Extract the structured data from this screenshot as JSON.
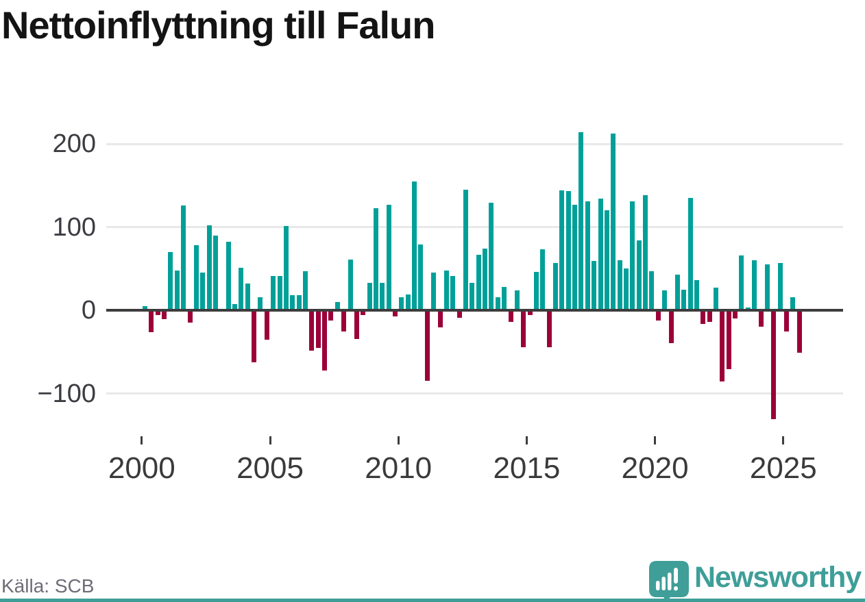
{
  "title": "Nettoinflyttning till Falun",
  "source": "Källa: SCB",
  "branding": {
    "logo_text": "Newsworthy",
    "logo_color": "#3f9e98",
    "logo_icon": "speech-bubble-bar-chart-exclamation"
  },
  "chart_data": {
    "type": "bar",
    "title": "Nettoinflyttning till Falun",
    "xlabel": "",
    "ylabel": "",
    "frequency": "quarterly",
    "grid": true,
    "legend": "none",
    "ylim": [
      -150,
      235
    ],
    "y_ticks": [
      200,
      100,
      0,
      -100
    ],
    "y_tick_labels": [
      "200",
      "100",
      "0",
      "−100"
    ],
    "x_tick_labels": [
      "2000",
      "2005",
      "2010",
      "2015",
      "2020",
      "2025"
    ],
    "colors": {
      "positive": "#00a099",
      "negative": "#9c0038"
    },
    "series_by_year": [
      {
        "year": 2000,
        "values": [
          5,
          -25,
          -4,
          -9
        ]
      },
      {
        "year": 2001,
        "values": [
          70,
          48,
          126,
          -13
        ]
      },
      {
        "year": 2002,
        "values": [
          78,
          45,
          102,
          90
        ]
      },
      {
        "year": 2003,
        "values": [
          0,
          82,
          7,
          51
        ]
      },
      {
        "year": 2004,
        "values": [
          32,
          -61,
          16,
          -34
        ]
      },
      {
        "year": 2005,
        "values": [
          41,
          41,
          101,
          18
        ]
      },
      {
        "year": 2006,
        "values": [
          18,
          47,
          -47,
          -44
        ]
      },
      {
        "year": 2007,
        "values": [
          -71,
          -11,
          10,
          -24
        ]
      },
      {
        "year": 2008,
        "values": [
          61,
          -33,
          -4,
          33
        ]
      },
      {
        "year": 2009,
        "values": [
          123,
          33,
          127,
          -6
        ]
      },
      {
        "year": 2010,
        "values": [
          16,
          19,
          155,
          79
        ]
      },
      {
        "year": 2011,
        "values": [
          -83,
          45,
          -19,
          48
        ]
      },
      {
        "year": 2012,
        "values": [
          41,
          -7,
          145,
          33
        ]
      },
      {
        "year": 2013,
        "values": [
          67,
          74,
          129,
          16
        ]
      },
      {
        "year": 2014,
        "values": [
          28,
          -12,
          24,
          -43
        ]
      },
      {
        "year": 2015,
        "values": [
          -4,
          46,
          73,
          -43
        ]
      },
      {
        "year": 2016,
        "values": [
          57,
          144,
          143,
          127
        ]
      },
      {
        "year": 2017,
        "values": [
          214,
          131,
          59,
          134
        ]
      },
      {
        "year": 2018,
        "values": [
          120,
          212,
          60,
          50
        ]
      },
      {
        "year": 2019,
        "values": [
          131,
          84,
          138,
          47
        ]
      },
      {
        "year": 2020,
        "values": [
          -11,
          24,
          -38,
          43
        ]
      },
      {
        "year": 2021,
        "values": [
          25,
          135,
          36,
          -15
        ]
      },
      {
        "year": 2022,
        "values": [
          -12,
          27,
          -84,
          -69
        ]
      },
      {
        "year": 2023,
        "values": [
          -8,
          66,
          3,
          60
        ]
      },
      {
        "year": 2024,
        "values": [
          -18,
          55,
          -129,
          57
        ]
      },
      {
        "year": 2025,
        "values": [
          -24,
          16,
          -49
        ]
      }
    ]
  }
}
